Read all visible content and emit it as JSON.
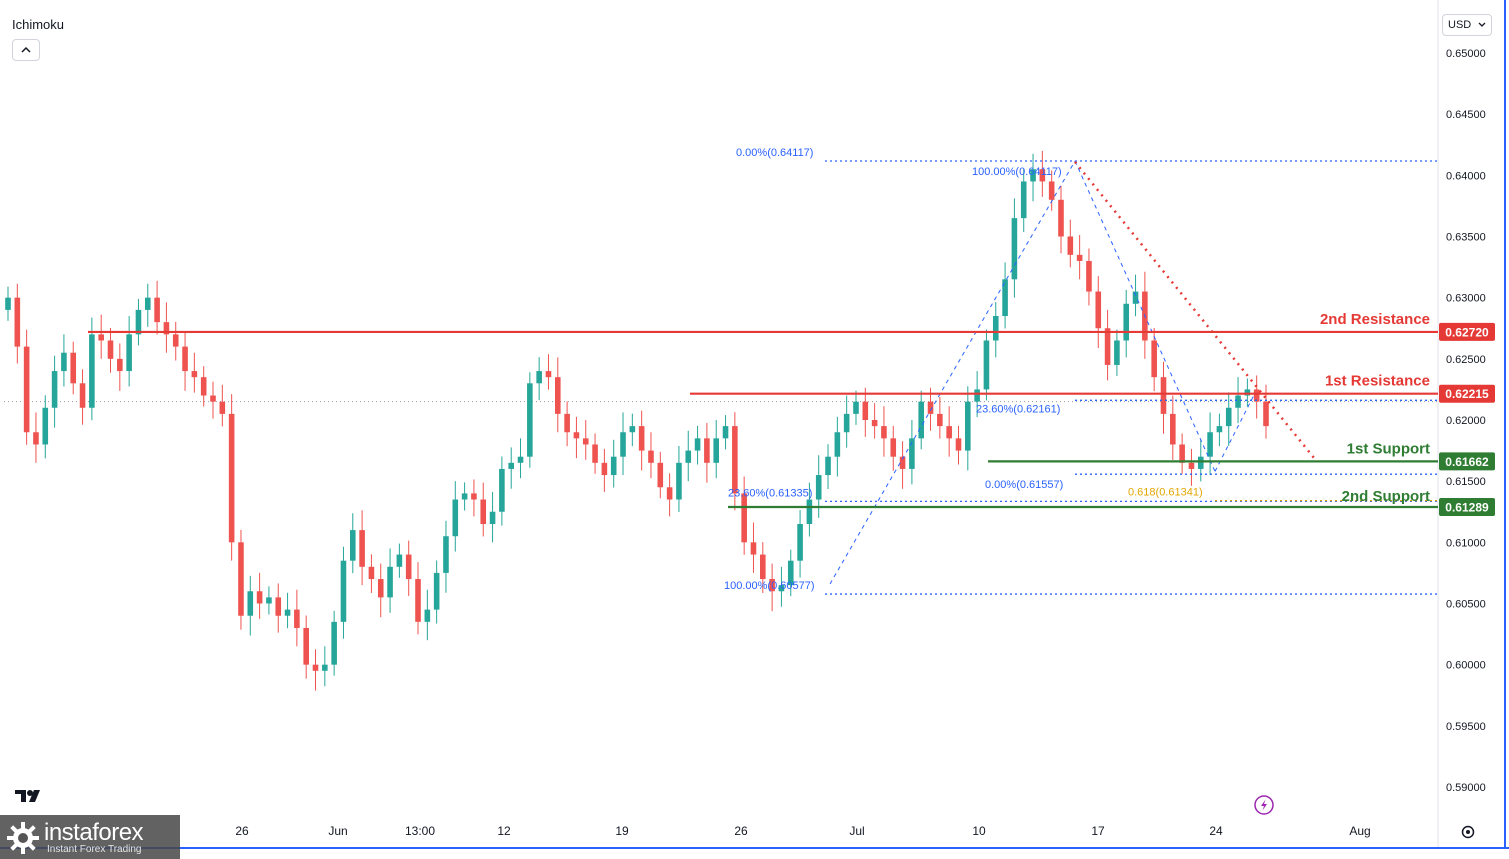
{
  "header": {
    "indicator_label": "Ichimoku",
    "currency_label": "USD"
  },
  "branding": {
    "brand_name": "instaforex",
    "tagline": "Instant Forex Trading"
  },
  "icons": {
    "collapse": "chevron-up-icon",
    "currency_dropdown": "chevron-down-icon",
    "settings": "gear-icon",
    "lightning": "lightning-icon",
    "tradingview_logo": "tradingview-logo",
    "brand_logo": "gear-logo-icon"
  },
  "colors": {
    "bull": "#26a69a",
    "bear": "#ef5350",
    "resistance": "#e53935",
    "support": "#2e7d32",
    "fib": "#2962ff",
    "fib_gold": "#e3a600",
    "cloud_green": "#a5d6a7",
    "cloud_red": "#f8bbbb"
  },
  "chart_data": {
    "type": "candlestick",
    "x_axis": {
      "tick_labels": [
        "26",
        "Jun",
        "13:00",
        "12",
        "19",
        "26",
        "Jul",
        "10",
        "17",
        "24",
        "Aug"
      ]
    },
    "y_axis": {
      "ylim": [
        0.5885,
        0.6525
      ],
      "tick_labels": [
        "0.65000",
        "0.64500",
        "0.64000",
        "0.63500",
        "0.63000",
        "0.62500",
        "0.62000",
        "0.61500",
        "0.61000",
        "0.60500",
        "0.60000",
        "0.59500",
        "0.59000"
      ],
      "tick_values": [
        0.65,
        0.645,
        0.64,
        0.635,
        0.63,
        0.625,
        0.62,
        0.615,
        0.61,
        0.605,
        0.6,
        0.595,
        0.59
      ]
    },
    "price_path": [
      0.63,
      0.626,
      0.619,
      0.618,
      0.621,
      0.624,
      0.6255,
      0.623,
      0.621,
      0.627,
      0.6265,
      0.625,
      0.624,
      0.627,
      0.629,
      0.63,
      0.628,
      0.627,
      0.626,
      0.624,
      0.6235,
      0.622,
      0.6215,
      0.6205,
      0.61,
      0.604,
      0.606,
      0.605,
      0.6055,
      0.604,
      0.6045,
      0.603,
      0.6,
      0.5995,
      0.6,
      0.6035,
      0.6085,
      0.611,
      0.608,
      0.607,
      0.6055,
      0.608,
      0.609,
      0.607,
      0.6035,
      0.6045,
      0.6075,
      0.6105,
      0.6135,
      0.614,
      0.6135,
      0.6115,
      0.6125,
      0.616,
      0.6165,
      0.617,
      0.623,
      0.624,
      0.6235,
      0.6205,
      0.619,
      0.6185,
      0.618,
      0.6165,
      0.6155,
      0.617,
      0.619,
      0.6195,
      0.6175,
      0.6165,
      0.6145,
      0.6135,
      0.6165,
      0.6175,
      0.6185,
      0.6165,
      0.6185,
      0.6195,
      0.614,
      0.61,
      0.609,
      0.607,
      0.606,
      0.6065,
      0.6085,
      0.6115,
      0.6135,
      0.6155,
      0.617,
      0.619,
      0.6205,
      0.6215,
      0.62,
      0.6195,
      0.6185,
      0.617,
      0.616,
      0.6185,
      0.6215,
      0.6205,
      0.6195,
      0.6185,
      0.6175,
      0.6215,
      0.6225,
      0.6265,
      0.6285,
      0.6315,
      0.6365,
      0.6395,
      0.6405,
      0.6395,
      0.638,
      0.635,
      0.6335,
      0.633,
      0.6305,
      0.6275,
      0.6245,
      0.6265,
      0.6295,
      0.6305,
      0.6265,
      0.6235,
      0.6205,
      0.618,
      0.6165,
      0.616,
      0.617,
      0.619,
      0.6195,
      0.621,
      0.622,
      0.6225,
      0.6215,
      0.6195
    ],
    "current_price_line": 0.6215,
    "levels": [
      {
        "name": "2nd Resistance",
        "value": 0.6272,
        "label": "0.62720",
        "kind": "resistance"
      },
      {
        "name": "1st Resistance",
        "value": 0.62215,
        "label": "0.62215",
        "kind": "resistance"
      },
      {
        "name": "1st Support",
        "value": 0.61662,
        "label": "0.61662",
        "kind": "support"
      },
      {
        "name": "2nd Support",
        "value": 0.61289,
        "label": "0.61289",
        "kind": "support"
      }
    ],
    "fib_annotations": [
      {
        "label": "0.00%(0.64117)",
        "value": 0.64117
      },
      {
        "label": "100.00%(0.64117)",
        "value": 0.64117
      },
      {
        "label": "23.60%(0.62161)",
        "value": 0.62161
      },
      {
        "label": "0.00%(0.61557)",
        "value": 0.61557
      },
      {
        "label": "23.60%(0.61335)",
        "value": 0.61335
      },
      {
        "label": "0.618(0.61341)",
        "value": 0.61341
      },
      {
        "label": "100.00%(0.60577)",
        "value": 0.60577
      }
    ]
  }
}
